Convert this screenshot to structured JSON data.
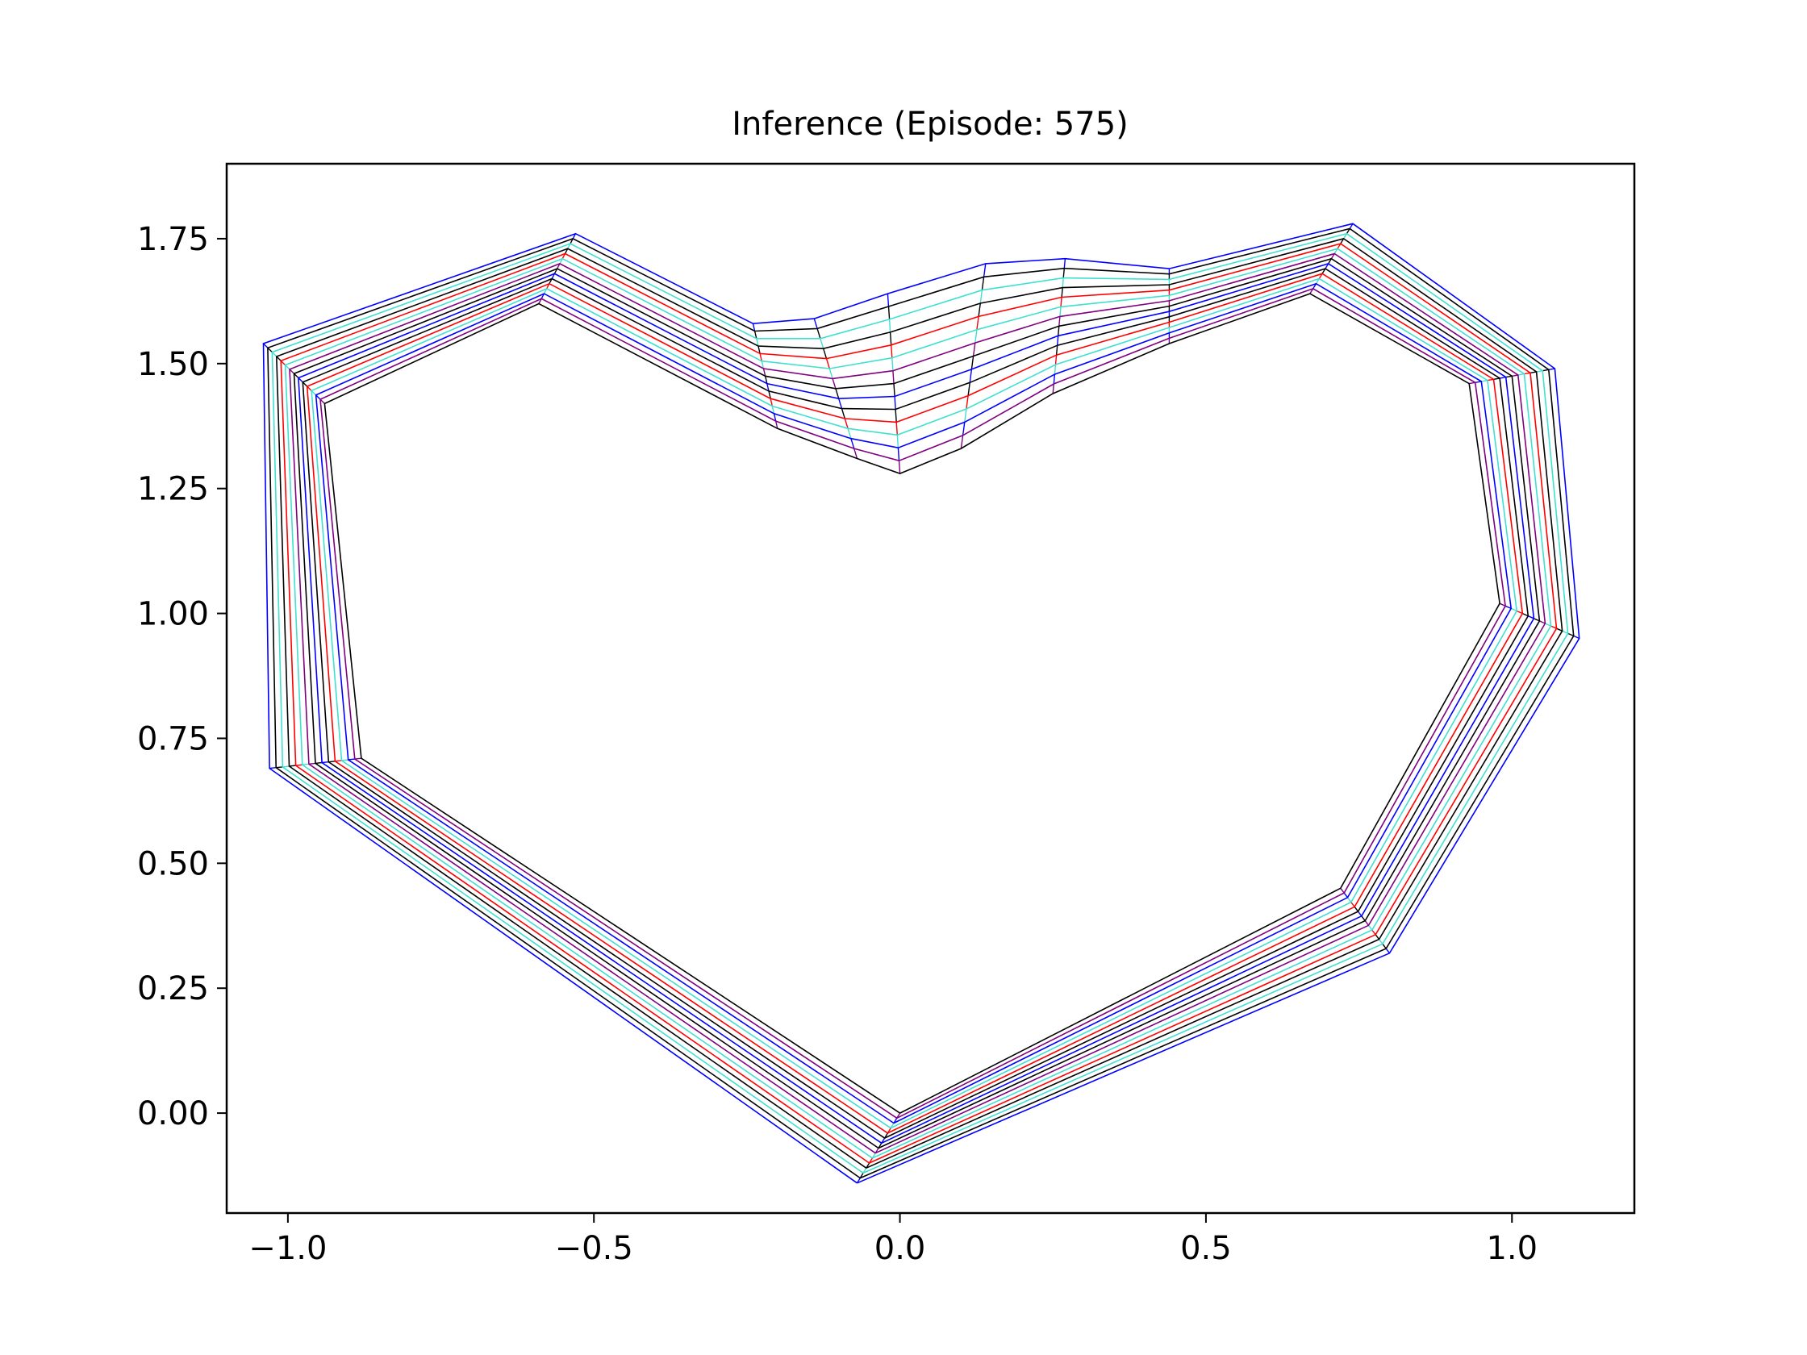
{
  "chart_data": {
    "type": "line",
    "title": "Inference (Episode: 575)",
    "xlabel": "",
    "ylabel": "",
    "xlim": [
      -1.1,
      1.2
    ],
    "ylim": [
      -0.2,
      1.9
    ],
    "grid": false,
    "legend": "none",
    "xticks": [
      {
        "value": -1.0,
        "label": "−1.0"
      },
      {
        "value": -0.5,
        "label": "−0.5"
      },
      {
        "value": 0.0,
        "label": "0.0"
      },
      {
        "value": 0.5,
        "label": "0.5"
      },
      {
        "value": 1.0,
        "label": "1.0"
      }
    ],
    "yticks": [
      {
        "value": 0.0,
        "label": "0.00"
      },
      {
        "value": 0.25,
        "label": "0.25"
      },
      {
        "value": 0.5,
        "label": "0.50"
      },
      {
        "value": 0.75,
        "label": "0.75"
      },
      {
        "value": 1.0,
        "label": "1.00"
      },
      {
        "value": 1.25,
        "label": "1.25"
      },
      {
        "value": 1.5,
        "label": "1.50"
      },
      {
        "value": 1.75,
        "label": "1.75"
      }
    ],
    "layer_colors": [
      "#0000ff",
      "#000000",
      "#40e0d0",
      "#000000",
      "#ff0000",
      "#40e0d0",
      "#800080",
      "#000000",
      "#0000ff",
      "#000000",
      "#ff0000",
      "#40e0d0",
      "#0000ff",
      "#800080",
      "#000000"
    ],
    "outer_polygon": {
      "x": [
        0.0,
        0.72,
        0.98,
        0.93,
        0.67,
        0.44,
        0.25,
        0.1,
        0.0,
        -0.07,
        -0.2,
        -0.59,
        -0.94,
        -0.88,
        0.0
      ],
      "y": [
        0.0,
        0.45,
        1.02,
        1.46,
        1.64,
        1.54,
        1.44,
        1.33,
        1.28,
        1.31,
        1.37,
        1.62,
        1.42,
        0.71,
        0.0
      ]
    },
    "inner_polygon": {
      "x": [
        -0.07,
        0.8,
        1.11,
        1.07,
        0.74,
        0.44,
        0.27,
        0.14,
        -0.02,
        -0.14,
        -0.24,
        -0.53,
        -1.04,
        -1.03,
        -0.07
      ],
      "y": [
        -0.14,
        0.32,
        0.95,
        1.49,
        1.78,
        1.69,
        1.71,
        1.7,
        1.64,
        1.59,
        1.58,
        1.76,
        1.54,
        0.69,
        -0.14
      ]
    }
  }
}
